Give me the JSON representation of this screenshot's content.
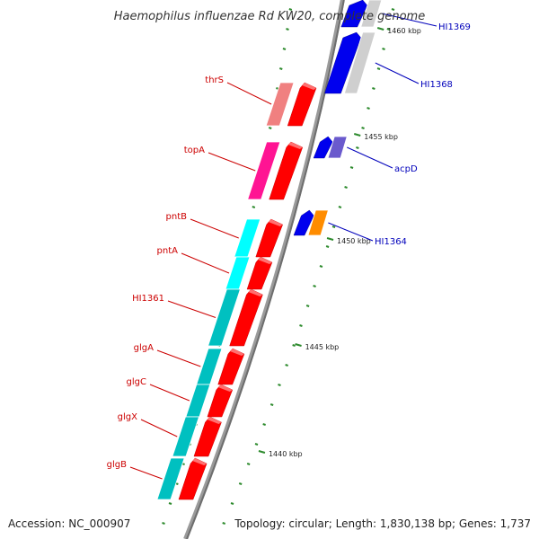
{
  "title": "Haemophilus influenzae Rd KW20, complete genome",
  "footer": {
    "accession": "Accession: NC_000907",
    "topology": "Topology: circular; Length: 1,830,138 bp; Genes: 1,737"
  },
  "colors": {
    "backbone": "#8a8a8a",
    "tick": "#2e8b2e",
    "left_label": "#cc0000",
    "right_label": "#0000bb"
  },
  "ticks": [
    {
      "label": "1460 kbp"
    },
    {
      "label": "1455 kbp"
    },
    {
      "label": "1450 kbp"
    },
    {
      "label": "1445 kbp"
    },
    {
      "label": "1440 kbp"
    }
  ],
  "left_genes": [
    {
      "name": "thrS",
      "cog_color": "#f08080"
    },
    {
      "name": "topA",
      "cog_color": "#ff1493"
    },
    {
      "name": "pntB",
      "cog_color": "#00ffff"
    },
    {
      "name": "pntA",
      "cog_color": "#00ffff"
    },
    {
      "name": "HI1361",
      "cog_color": "#00c0c0"
    },
    {
      "name": "glgA",
      "cog_color": "#00c0c0"
    },
    {
      "name": "glgC",
      "cog_color": "#00c0c0"
    },
    {
      "name": "glgX",
      "cog_color": "#00c0c0"
    },
    {
      "name": "glgB",
      "cog_color": "#00c0c0"
    }
  ],
  "right_genes": [
    {
      "name": "HI1369",
      "cog_color": "#c8c8ff"
    },
    {
      "name": "HI1368",
      "cog_color": "#0000ee"
    },
    {
      "name": "acpD",
      "cog_color": "#6a5acd"
    },
    {
      "name": "HI1364",
      "cog_color": "#ff8c00"
    }
  ]
}
